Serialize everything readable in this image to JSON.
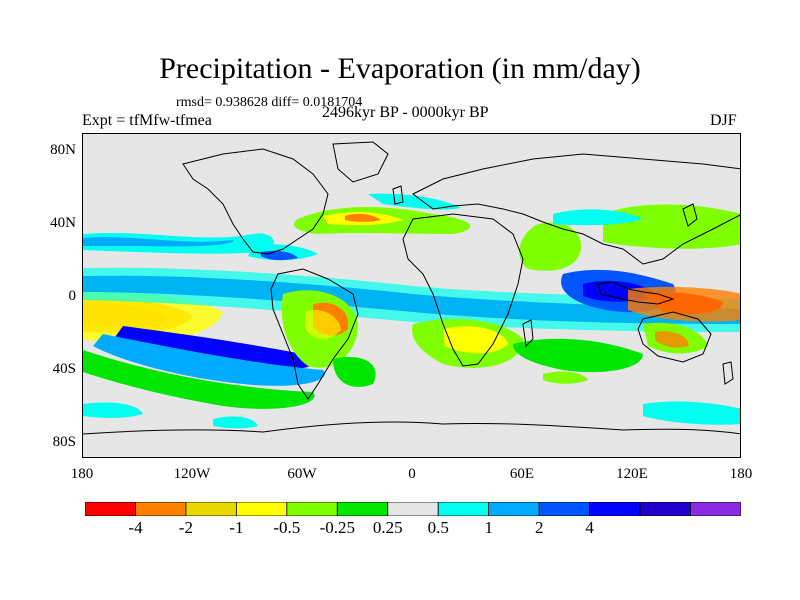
{
  "title": "Precipitation - Evaporation (in mm/day)",
  "stats": "rmsd= 0.938628 diff= 0.0181704",
  "experiment": "Expt = tfMfw-tfmea",
  "period": "2496kyr BP - 0000kyr BP",
  "season": "DJF",
  "lat_labels": [
    "80N",
    "40N",
    "0",
    "40S",
    "80S"
  ],
  "lon_labels": [
    "180",
    "120W",
    "60W",
    "0",
    "60E",
    "120E",
    "180"
  ],
  "colorbar": {
    "colors": [
      "#ff0000",
      "#ff8000",
      "#e6d800",
      "#ffff00",
      "#80ff00",
      "#00e600",
      "#e6e6e6",
      "#00ffee",
      "#00aaff",
      "#0055ff",
      "#0000ff",
      "#2200cc",
      "#8a2be2"
    ],
    "labels": [
      "-4",
      "-2",
      "-1",
      "-0.5",
      "-0.25",
      "0.25",
      "0.5",
      "1",
      "2",
      "4"
    ]
  },
  "map_legend": {
    "neutral": "#e6e6e6",
    "coast": "#000000"
  }
}
